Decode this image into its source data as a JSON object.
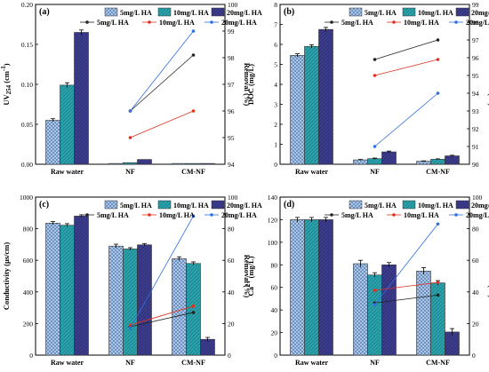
{
  "colors": {
    "bar_5": "#a9c7ea",
    "bar_10": "#29a3ad",
    "bar_20": "#3d3d8f",
    "line_5": "#222222",
    "line_10": "#e03020",
    "line_20": "#2f6fe0"
  },
  "chart_data": [
    {
      "type": "bar",
      "panel_label": "(a)",
      "categories": [
        "Raw water",
        "NF",
        "CM-NF"
      ],
      "ylabel_html": "UV<tspan font-size='7' dy='2'>254</tspan><tspan dy='-2'> (cm</tspan><tspan font-size='7' dy='-4'>-1</tspan><tspan dy='4'>)</tspan>",
      "ylim": [
        0,
        0.2
      ],
      "yticks": [
        "0.00",
        "0.05",
        "0.10",
        "0.15",
        "0.20"
      ],
      "right_label": "Removal (%)",
      "right_ylim": [
        94,
        100
      ],
      "right_ticks": [
        "94",
        "95",
        "96",
        "97",
        "98",
        "99",
        "100"
      ],
      "series": [
        {
          "name": "5mg/L HA",
          "values": [
            0.055,
            0.001,
            0.001
          ],
          "errors": [
            0.002,
            0,
            0
          ]
        },
        {
          "name": "10mg/L HA",
          "values": [
            0.099,
            0.002,
            0.001
          ],
          "errors": [
            0.003,
            0,
            0
          ]
        },
        {
          "name": "20mg/L HA",
          "values": [
            0.165,
            0.006,
            0.001
          ],
          "errors": [
            0.003,
            0,
            0
          ]
        }
      ],
      "removal": [
        {
          "name": "5mg/L HA",
          "values": [
            96.0,
            98.1
          ]
        },
        {
          "name": "10mg/L HA",
          "values": [
            95.0,
            96.0
          ]
        },
        {
          "name": "20mg/L HA",
          "values": [
            96.0,
            99.0
          ]
        }
      ]
    },
    {
      "type": "bar",
      "panel_label": "(b)",
      "categories": [
        "Raw water",
        "NF",
        "CM-NF"
      ],
      "ylabel_html": "DOC (mg/L)",
      "ylim": [
        0,
        8
      ],
      "yticks": [
        "0",
        "1",
        "2",
        "3",
        "4",
        "5",
        "6",
        "7",
        "8"
      ],
      "right_label": "Removal (%)",
      "right_ylim": [
        90,
        99
      ],
      "right_ticks": [
        "90",
        "91",
        "92",
        "93",
        "94",
        "95",
        "96",
        "97",
        "98",
        "99"
      ],
      "series": [
        {
          "name": "5mg/L HA",
          "values": [
            5.45,
            0.22,
            0.15
          ],
          "errors": [
            0.08,
            0.02,
            0.02
          ]
        },
        {
          "name": "10mg/L HA",
          "values": [
            5.9,
            0.28,
            0.25
          ],
          "errors": [
            0.08,
            0.03,
            0.02
          ]
        },
        {
          "name": "20mg/L HA",
          "values": [
            6.75,
            0.62,
            0.42
          ],
          "errors": [
            0.1,
            0.04,
            0.03
          ]
        }
      ],
      "removal": [
        {
          "name": "5mg/L HA",
          "values": [
            95.9,
            97.0
          ]
        },
        {
          "name": "10mg/L HA",
          "values": [
            95.0,
            95.9
          ]
        },
        {
          "name": "20mg/L HA",
          "values": [
            91.0,
            94.0
          ]
        }
      ]
    },
    {
      "type": "bar",
      "panel_label": "(c)",
      "categories": [
        "Raw water",
        "NF",
        "CM-NF"
      ],
      "ylabel_html": "Conductivity (μs/cm)",
      "ylim": [
        0,
        1000
      ],
      "yticks": [
        "0",
        "200",
        "400",
        "600",
        "800",
        "1000"
      ],
      "right_label": "Removal (%)",
      "right_ylim": [
        0,
        100
      ],
      "right_ticks": [
        "0",
        "20",
        "40",
        "60",
        "80",
        "100"
      ],
      "series": [
        {
          "name": "5mg/L HA",
          "values": [
            835,
            690,
            610
          ],
          "errors": [
            10,
            12,
            12
          ]
        },
        {
          "name": "10mg/L HA",
          "values": [
            822,
            672,
            580
          ],
          "errors": [
            10,
            8,
            10
          ]
        },
        {
          "name": "20mg/L HA",
          "values": [
            880,
            698,
            100
          ],
          "errors": [
            8,
            8,
            12
          ]
        }
      ],
      "removal": [
        {
          "name": "5mg/L HA",
          "values": [
            18,
            27
          ]
        },
        {
          "name": "10mg/L HA",
          "values": [
            19,
            31
          ]
        },
        {
          "name": "20mg/L HA",
          "values": [
            17,
            88
          ]
        }
      ]
    },
    {
      "type": "bar",
      "panel_label": "(d)",
      "categories": [
        "Raw water",
        "NF",
        "CM-NF"
      ],
      "ylabel_html": "Ca<tspan font-size='7' dy='-4'>2+</tspan><tspan dy='4'> (mg/L)</tspan>",
      "ylim": [
        0,
        140
      ],
      "yticks": [
        "0",
        "20",
        "40",
        "60",
        "80",
        "100",
        "120",
        "140"
      ],
      "right_label": "Removal (%)",
      "right_ylim": [
        0,
        100
      ],
      "right_ticks": [
        "0",
        "20",
        "40",
        "60",
        "80",
        "100"
      ],
      "series": [
        {
          "name": "5mg/L HA",
          "values": [
            120,
            81,
            74.5
          ],
          "errors": [
            2,
            3,
            3
          ]
        },
        {
          "name": "10mg/L HA",
          "values": [
            120,
            71,
            64
          ],
          "errors": [
            2,
            2,
            2
          ]
        },
        {
          "name": "20mg/L HA",
          "values": [
            120,
            80,
            20.5
          ],
          "errors": [
            2,
            2,
            3
          ]
        }
      ],
      "removal": [
        {
          "name": "5mg/L HA",
          "values": [
            33,
            38
          ]
        },
        {
          "name": "10mg/L HA",
          "values": [
            41,
            46
          ]
        },
        {
          "name": "20mg/L HA",
          "values": [
            32,
            83
          ]
        }
      ]
    }
  ]
}
